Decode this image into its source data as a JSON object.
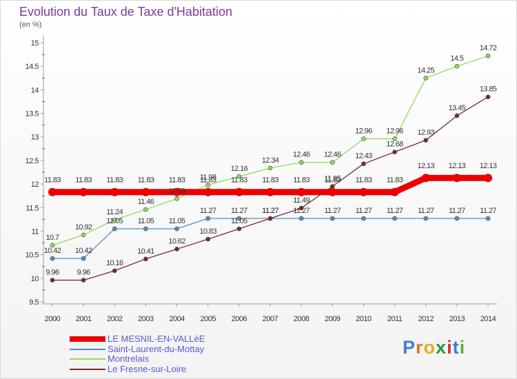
{
  "title": "Evolution du Taux de Taxe d'Habitation",
  "unit": "(en %)",
  "brand": {
    "letters": [
      "P",
      "r",
      "o",
      "x",
      "i",
      "t",
      "i"
    ],
    "colors": [
      "#3a7fd0",
      "#e07a1a",
      "#e0b020",
      "#2a9a3a",
      "#d03030",
      "#3a7fd0",
      "#60b030"
    ]
  },
  "chart_data": {
    "type": "line",
    "title": "Evolution du Taux de Taxe d'Habitation",
    "ylabel": "(en %)",
    "x": [
      2000,
      2001,
      2002,
      2003,
      2004,
      2005,
      2006,
      2007,
      2008,
      2009,
      2010,
      2011,
      2012,
      2013,
      2014
    ],
    "ylim": [
      9.5,
      15
    ],
    "yticks": [
      9.5,
      10,
      10.5,
      11,
      11.5,
      12,
      12.5,
      13,
      13.5,
      14,
      14.5,
      15
    ],
    "grid": false,
    "legend": "bottom-left",
    "series": [
      {
        "name": "LE MESNIL-EN-VALLéE",
        "color": "#ee0000",
        "values": [
          11.83,
          11.83,
          11.83,
          11.83,
          11.83,
          11.83,
          11.83,
          11.83,
          11.83,
          11.83,
          11.83,
          11.83,
          12.13,
          12.13,
          12.13
        ],
        "labels": [
          "11.83",
          "11.83",
          "11.83",
          "11.83",
          "11.83",
          "11.83",
          "11.83",
          "11.83",
          "11.83",
          "11.83",
          "11.83",
          "11.83",
          "12.13",
          "12.13",
          "12.13"
        ]
      },
      {
        "name": "Saint-Laurent-du-Mottay",
        "color": "#4f8fc7",
        "values": [
          10.42,
          10.42,
          11.05,
          11.05,
          11.05,
          11.27,
          11.27,
          11.27,
          11.27,
          11.27,
          11.27,
          11.27,
          11.27,
          11.27,
          11.27
        ],
        "labels": [
          "10.42",
          "10.42",
          "11.05",
          "11.05",
          "11.05",
          "11.27",
          "11.27",
          "11.27",
          "11.27",
          "11.27",
          "11.27",
          "11.27",
          "11.27",
          "11.27",
          "11.27"
        ]
      },
      {
        "name": "Montrelais",
        "color": "#8fdb5a",
        "values": [
          10.7,
          10.92,
          11.24,
          11.46,
          11.69,
          11.98,
          12.16,
          12.34,
          12.46,
          12.46,
          12.96,
          12.96,
          14.25,
          14.5,
          14.72
        ],
        "labels": [
          "10.7",
          "10.92",
          "11.24",
          "11.46",
          "11.69",
          "11.98",
          "12.16",
          "12.34",
          "12.46",
          "12.46",
          "12.96",
          "12.96",
          "14.25",
          "14.5",
          "14.72"
        ]
      },
      {
        "name": "Le Fresne-sur-Loire",
        "color": "#7a2a2a",
        "values": [
          9.96,
          9.96,
          10.16,
          10.41,
          10.62,
          10.83,
          11.05,
          11.27,
          11.49,
          11.95,
          12.43,
          12.68,
          12.93,
          13.45,
          13.85
        ],
        "labels": [
          "9.96",
          "9.96",
          "10.16",
          "10.41",
          "10.62",
          "10.83",
          "11.05",
          "11.27",
          "11.49",
          "11.95",
          "12.43",
          "12.68",
          "12.93",
          "13.45",
          "13.85"
        ]
      }
    ]
  }
}
